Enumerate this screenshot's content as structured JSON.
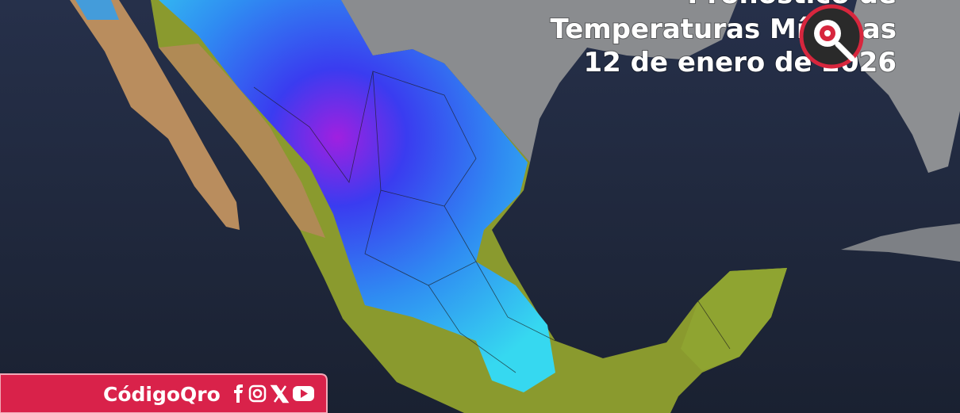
{
  "header": {
    "title_lines": [
      "Pronóstico de",
      "Temperaturas Mínimas",
      "12 de enero de 2026"
    ]
  },
  "footer": {
    "brand": "CódigoQro"
  }
}
